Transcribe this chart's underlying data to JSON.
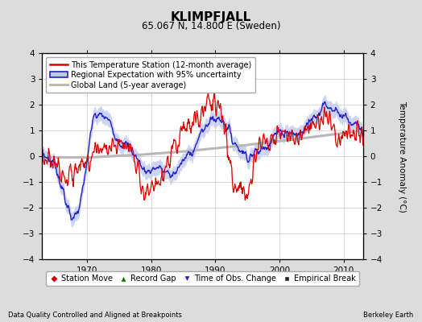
{
  "title": "KLIMPFJALL",
  "subtitle": "65.067 N, 14.800 E (Sweden)",
  "ylabel": "Temperature Anomaly (°C)",
  "xlabel_left": "Data Quality Controlled and Aligned at Breakpoints",
  "xlabel_right": "Berkeley Earth",
  "ylim": [
    -4,
    4
  ],
  "xlim": [
    1963,
    2013
  ],
  "xticks": [
    1970,
    1980,
    1990,
    2000,
    2010
  ],
  "yticks": [
    -4,
    -3,
    -2,
    -1,
    0,
    1,
    2,
    3,
    4
  ],
  "bg_color": "#dcdcdc",
  "plot_bg_color": "#ffffff",
  "legend_entries": [
    "This Temperature Station (12-month average)",
    "Regional Expectation with 95% uncertainty",
    "Global Land (5-year average)"
  ],
  "legend_marker_entries": [
    "Station Move",
    "Record Gap",
    "Time of Obs. Change",
    "Empirical Break"
  ],
  "station_color": "#dd0000",
  "regional_color": "#2222cc",
  "regional_band_color": "#c0c8f0",
  "global_color": "#b8b8b8",
  "grid_color": "#cccccc"
}
